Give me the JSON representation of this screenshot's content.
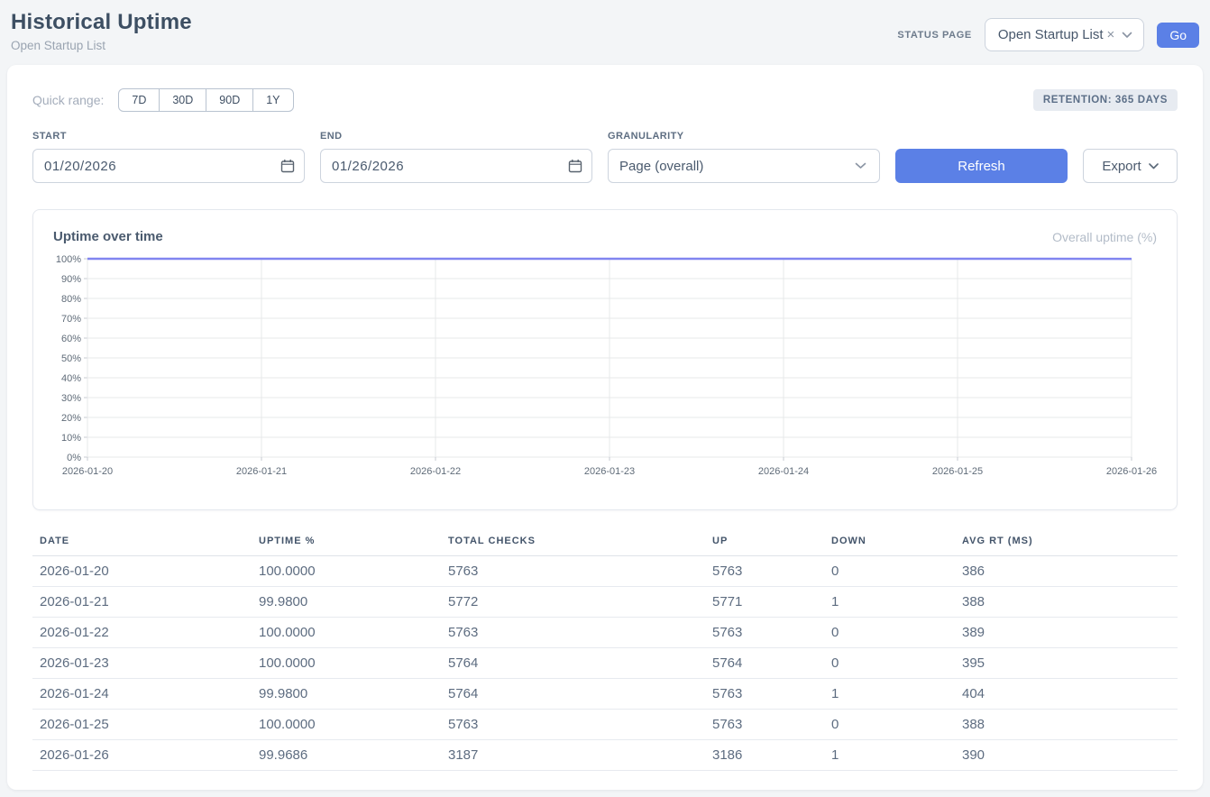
{
  "header": {
    "title": "Historical Uptime",
    "subtitle": "Open Startup List",
    "status_page_label": "STATUS PAGE",
    "status_page_value": "Open Startup List",
    "clear_icon": "×",
    "go_label": "Go"
  },
  "filters": {
    "quick_range_label": "Quick range:",
    "quick_ranges": [
      "7D",
      "30D",
      "90D",
      "1Y"
    ],
    "retention_badge": "RETENTION: 365 DAYS",
    "start_label": "START",
    "start_value": "01/20/2026",
    "end_label": "END",
    "end_value": "01/26/2026",
    "granularity_label": "GRANULARITY",
    "granularity_value": "Page (overall)",
    "refresh_label": "Refresh",
    "export_label": "Export"
  },
  "chart": {
    "title": "Uptime over time",
    "legend": "Overall uptime (%)"
  },
  "chart_data": {
    "type": "line",
    "title": "Uptime over time",
    "categories": [
      "2026-01-20",
      "2026-01-21",
      "2026-01-22",
      "2026-01-23",
      "2026-01-24",
      "2026-01-25",
      "2026-01-26"
    ],
    "series": [
      {
        "name": "Overall uptime (%)",
        "values": [
          100.0,
          99.98,
          100.0,
          100.0,
          99.98,
          100.0,
          99.9686
        ]
      }
    ],
    "ylim": [
      0,
      100
    ],
    "y_ticks": [
      0,
      10,
      20,
      30,
      40,
      50,
      60,
      70,
      80,
      90,
      100
    ],
    "y_tick_suffix": "%",
    "grid": true,
    "legend_position": "top-right",
    "line_color": "#8185f0"
  },
  "table": {
    "columns": [
      "DATE",
      "UPTIME %",
      "TOTAL CHECKS",
      "UP",
      "DOWN",
      "AVG RT (MS)"
    ],
    "rows": [
      [
        "2026-01-20",
        "100.0000",
        "5763",
        "5763",
        "0",
        "386"
      ],
      [
        "2026-01-21",
        "99.9800",
        "5772",
        "5771",
        "1",
        "388"
      ],
      [
        "2026-01-22",
        "100.0000",
        "5763",
        "5763",
        "0",
        "389"
      ],
      [
        "2026-01-23",
        "100.0000",
        "5764",
        "5764",
        "0",
        "395"
      ],
      [
        "2026-01-24",
        "99.9800",
        "5764",
        "5763",
        "1",
        "404"
      ],
      [
        "2026-01-25",
        "100.0000",
        "5763",
        "5763",
        "0",
        "388"
      ],
      [
        "2026-01-26",
        "99.9686",
        "3187",
        "3186",
        "1",
        "390"
      ]
    ]
  },
  "colors": {
    "accent_blue": "#5b80e6",
    "line_purple": "#8185f0",
    "grid_line": "#e7e8ea"
  }
}
